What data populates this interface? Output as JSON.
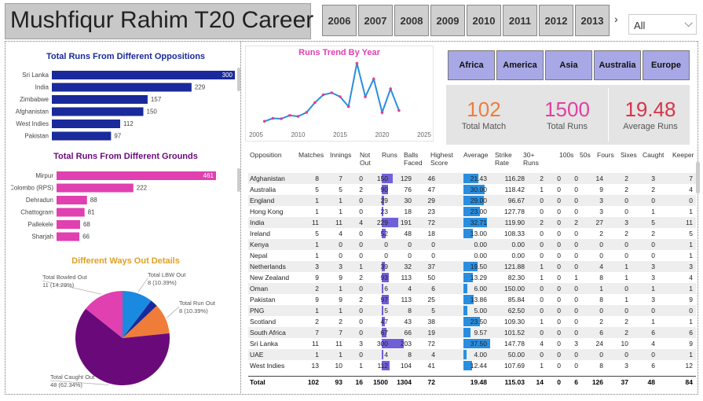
{
  "title": "Mushfiqur Rahim T20 Career",
  "years": [
    "2006",
    "2007",
    "2008",
    "2009",
    "2010",
    "2011",
    "2012",
    "2013"
  ],
  "year_next": "›",
  "filter": {
    "selected": "All",
    "chevron": "⌵"
  },
  "regions": [
    "Africa",
    "America",
    "Asia",
    "Australia",
    "Europe"
  ],
  "kpis": [
    {
      "value": "102",
      "label": "Total Match",
      "color": "#f07c3a"
    },
    {
      "value": "1500",
      "label": "Total Runs",
      "color": "#e040a0"
    },
    {
      "value": "19.48",
      "label": "Average Runs",
      "color": "#d8344a"
    }
  ],
  "colors": {
    "opp_bar": "#1a2a9a",
    "ground_bar": "#e040b0",
    "trend_line": "#2a8ee0",
    "trend_point": "#e0408a",
    "avg_bar": "#2a8ee0",
    "runs_bar": "#7060d8"
  },
  "chart_data": [
    {
      "type": "bar",
      "title": "Total Runs From Different Oppositions",
      "categories": [
        "Sri Lanka",
        "India",
        "Zimbabwe",
        "Afghanistan",
        "West Indies",
        "Pakistan"
      ],
      "values": [
        300,
        229,
        157,
        150,
        112,
        97
      ],
      "xlim": [
        0,
        300
      ],
      "orientation": "horizontal"
    },
    {
      "type": "line",
      "title": "Runs Trend By Year",
      "x": [
        2006,
        2007,
        2008,
        2009,
        2010,
        2011,
        2012,
        2013,
        2014,
        2015,
        2016,
        2017,
        2018,
        2019,
        2020,
        2021,
        2022
      ],
      "values": [
        15,
        30,
        28,
        45,
        40,
        60,
        110,
        150,
        160,
        140,
        90,
        310,
        140,
        230,
        60,
        180,
        70
      ],
      "xticks": [
        2005,
        2010,
        2015,
        2020,
        2025
      ],
      "xlim": [
        2005,
        2025
      ],
      "ylim": [
        0,
        320
      ]
    },
    {
      "type": "bar",
      "title": "Total Runs From Different Grounds",
      "categories": [
        "Mirpur",
        "Colombo (RPS)",
        "Dehradun",
        "Chattogram",
        "Pallekele",
        "Sharjah"
      ],
      "values": [
        461,
        222,
        88,
        81,
        68,
        66
      ],
      "xlim": [
        0,
        461
      ],
      "orientation": "horizontal"
    },
    {
      "type": "pie",
      "title": "Different Ways Out Details",
      "slices": [
        {
          "label": "Total Caught Out",
          "value": 48,
          "pct": "62.34%",
          "color": "#6a0a7a"
        },
        {
          "label": "Total Bowled Out",
          "value": 11,
          "pct": "14.29%",
          "color": "#e040b0"
        },
        {
          "label": "Total LBW Out",
          "value": 8,
          "pct": "10.39%",
          "color": "#1a8ae0"
        },
        {
          "label": "Total Run Out",
          "value": 8,
          "pct": "10.39%",
          "color": "#f07c3a"
        },
        {
          "label": "",
          "value": 2,
          "pct": "",
          "color": "#1a2a9a"
        }
      ],
      "legend": "callouts"
    }
  ],
  "table": {
    "headers": [
      "Opposition",
      "Matches",
      "Innings",
      "Not Out",
      "Runs",
      "Balls Faced",
      "Highest Score",
      "Average",
      "Strike Rate",
      "30+ Runs",
      "100s",
      "50s",
      "Fours",
      "Sixes",
      "Caught",
      "Keeper"
    ],
    "rows": [
      [
        "Afghanistan",
        "8",
        "7",
        "0",
        "150",
        "129",
        "46",
        "21.43",
        "116.28",
        "2",
        "0",
        "0",
        "14",
        "2",
        "3",
        "7"
      ],
      [
        "Australia",
        "5",
        "5",
        "2",
        "90",
        "76",
        "47",
        "30.00",
        "118.42",
        "1",
        "0",
        "0",
        "9",
        "2",
        "2",
        "4"
      ],
      [
        "England",
        "1",
        "1",
        "0",
        "29",
        "30",
        "29",
        "29.00",
        "96.67",
        "0",
        "0",
        "0",
        "3",
        "0",
        "0",
        "0"
      ],
      [
        "Hong Kong",
        "1",
        "1",
        "0",
        "23",
        "18",
        "23",
        "23.00",
        "127.78",
        "0",
        "0",
        "0",
        "3",
        "0",
        "1",
        "1"
      ],
      [
        "India",
        "11",
        "11",
        "4",
        "229",
        "191",
        "72",
        "32.71",
        "119.90",
        "2",
        "0",
        "2",
        "27",
        "3",
        "5",
        "11"
      ],
      [
        "Ireland",
        "5",
        "4",
        "0",
        "52",
        "48",
        "18",
        "13.00",
        "108.33",
        "0",
        "0",
        "0",
        "2",
        "2",
        "2",
        "5"
      ],
      [
        "Kenya",
        "1",
        "0",
        "0",
        "0",
        "0",
        "0",
        "0.00",
        "0.00",
        "0",
        "0",
        "0",
        "0",
        "0",
        "0",
        "1"
      ],
      [
        "Nepal",
        "1",
        "0",
        "0",
        "0",
        "0",
        "0",
        "0.00",
        "0.00",
        "0",
        "0",
        "0",
        "0",
        "0",
        "0",
        "1"
      ],
      [
        "Netherlands",
        "3",
        "3",
        "1",
        "39",
        "32",
        "37",
        "19.50",
        "121.88",
        "1",
        "0",
        "0",
        "4",
        "1",
        "3",
        "3"
      ],
      [
        "New Zealand",
        "9",
        "9",
        "2",
        "93",
        "113",
        "50",
        "13.29",
        "82.30",
        "1",
        "0",
        "1",
        "8",
        "1",
        "3",
        "4"
      ],
      [
        "Oman",
        "2",
        "1",
        "0",
        "6",
        "4",
        "6",
        "6.00",
        "150.00",
        "0",
        "0",
        "0",
        "1",
        "0",
        "1",
        "1"
      ],
      [
        "Pakistan",
        "9",
        "9",
        "2",
        "97",
        "113",
        "25",
        "13.86",
        "85.84",
        "0",
        "0",
        "0",
        "8",
        "1",
        "3",
        "9"
      ],
      [
        "PNG",
        "1",
        "1",
        "0",
        "5",
        "8",
        "5",
        "5.00",
        "62.50",
        "0",
        "0",
        "0",
        "0",
        "0",
        "0",
        "0"
      ],
      [
        "Scotland",
        "2",
        "2",
        "0",
        "47",
        "43",
        "38",
        "23.50",
        "109.30",
        "1",
        "0",
        "0",
        "2",
        "2",
        "1",
        "1"
      ],
      [
        "South Africa",
        "7",
        "7",
        "0",
        "67",
        "66",
        "19",
        "9.57",
        "101.52",
        "0",
        "0",
        "0",
        "6",
        "2",
        "6",
        "6"
      ],
      [
        "Sri Lanka",
        "11",
        "11",
        "3",
        "300",
        "203",
        "72",
        "37.50",
        "147.78",
        "4",
        "0",
        "3",
        "24",
        "10",
        "4",
        "9"
      ],
      [
        "UAE",
        "1",
        "1",
        "0",
        "4",
        "8",
        "4",
        "4.00",
        "50.00",
        "0",
        "0",
        "0",
        "0",
        "0",
        "0",
        "1"
      ],
      [
        "West Indies",
        "13",
        "10",
        "1",
        "112",
        "104",
        "41",
        "12.44",
        "107.69",
        "1",
        "0",
        "0",
        "8",
        "3",
        "6",
        "12"
      ]
    ],
    "total": [
      "Total",
      "102",
      "93",
      "16",
      "1500",
      "1304",
      "72",
      "19.48",
      "115.03",
      "14",
      "0",
      "6",
      "126",
      "37",
      "48",
      "84"
    ]
  }
}
